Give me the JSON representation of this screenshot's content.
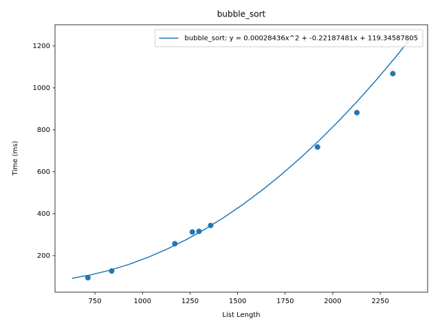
{
  "chart_data": {
    "type": "scatter",
    "title": "bubble_sort",
    "x_label": "List Length",
    "y_label": "Time (ms)",
    "x": [
      713,
      838,
      1170,
      1262,
      1297,
      1358,
      1920,
      2127,
      2316
    ],
    "values": [
      95,
      127,
      257,
      313,
      316,
      344,
      718,
      882,
      1068
    ],
    "color": "#1f77b4",
    "series": [
      {
        "name": "bubble_sort: y = 0.00028436x^2 + -0.22187481x + 119.34587805",
        "color": "#1f77b4",
        "x": [
          630,
          730,
          830,
          930,
          1030,
          1130,
          1230,
          1330,
          1430,
          1530,
          1630,
          1730,
          1830,
          1930,
          2030,
          2130,
          2230,
          2330,
          2410
        ],
        "values": [
          92.43,
          108.92,
          131.09,
          158.95,
          192.5,
          231.73,
          276.65,
          327.26,
          383.56,
          445.54,
          513.21,
          586.57,
          665.61,
          750.34,
          840.76,
          936.87,
          1038.66,
          1146.14,
          1236.22
        ]
      }
    ],
    "xlim": [
      540,
      2499
    ],
    "xticks": [
      750,
      1000,
      1250,
      1500,
      1750,
      2000,
      2250
    ],
    "ylim": [
      26,
      1301
    ],
    "yticks": [
      200,
      400,
      600,
      800,
      1000,
      1200
    ],
    "grid": false,
    "legend": "upper right"
  }
}
